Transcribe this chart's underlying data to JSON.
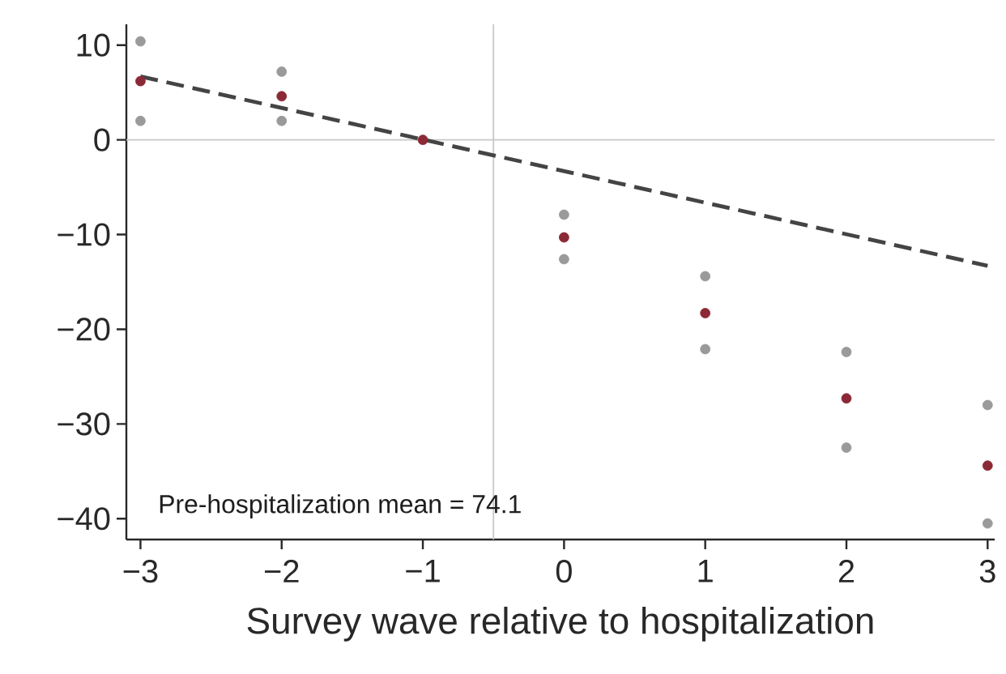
{
  "chart_data": {
    "type": "scatter",
    "xlabel": "Survey wave relative to hospitalization",
    "annotations": [
      "Pre-hospitalization mean = 74.1"
    ],
    "series": [
      {
        "color": "#8b2a36",
        "marker": "circle",
        "x": [
          -3,
          -2,
          -1,
          0,
          1,
          2,
          3
        ],
        "values": [
          6.2,
          4.6,
          0,
          -10.3,
          -18.3,
          -27.3,
          -34.4
        ]
      },
      {
        "color": "#9a9a9a",
        "marker": "circle",
        "x": [
          -3,
          -2,
          0,
          1,
          2,
          3
        ],
        "values": [
          10.4,
          7.2,
          -7.9,
          -14.4,
          -22.4,
          -28.0
        ]
      },
      {
        "color": "#9a9a9a",
        "marker": "circle",
        "x": [
          -3,
          -2,
          0,
          1,
          2,
          3
        ],
        "values": [
          2.0,
          2.0,
          -12.6,
          -22.1,
          -32.5,
          -40.5
        ]
      },
      {
        "type": "line",
        "color": "#444444",
        "line_style": "dashed",
        "marker": "none",
        "x": [
          -3,
          3
        ],
        "values": [
          6.7,
          -13.3
        ]
      }
    ],
    "ref_lines": [
      {
        "axis": "x",
        "value": -0.5,
        "color": "#c8c8c8"
      },
      {
        "axis": "y",
        "value": 0,
        "color": "#c8c8c8"
      }
    ],
    "xlim": [
      -3.1,
      3.05
    ],
    "ylim": [
      -42.2,
      12.2
    ],
    "xticks": [
      {
        "value": -3,
        "label": "−3"
      },
      {
        "value": -2,
        "label": "−2"
      },
      {
        "value": -1,
        "label": "−1"
      },
      0,
      1,
      2,
      3
    ],
    "yticks": [
      {
        "value": -40,
        "label": "−40"
      },
      {
        "value": -30,
        "label": "−30"
      },
      {
        "value": -20,
        "label": "−20"
      },
      {
        "value": -10,
        "label": "−10"
      },
      0,
      10
    ]
  }
}
